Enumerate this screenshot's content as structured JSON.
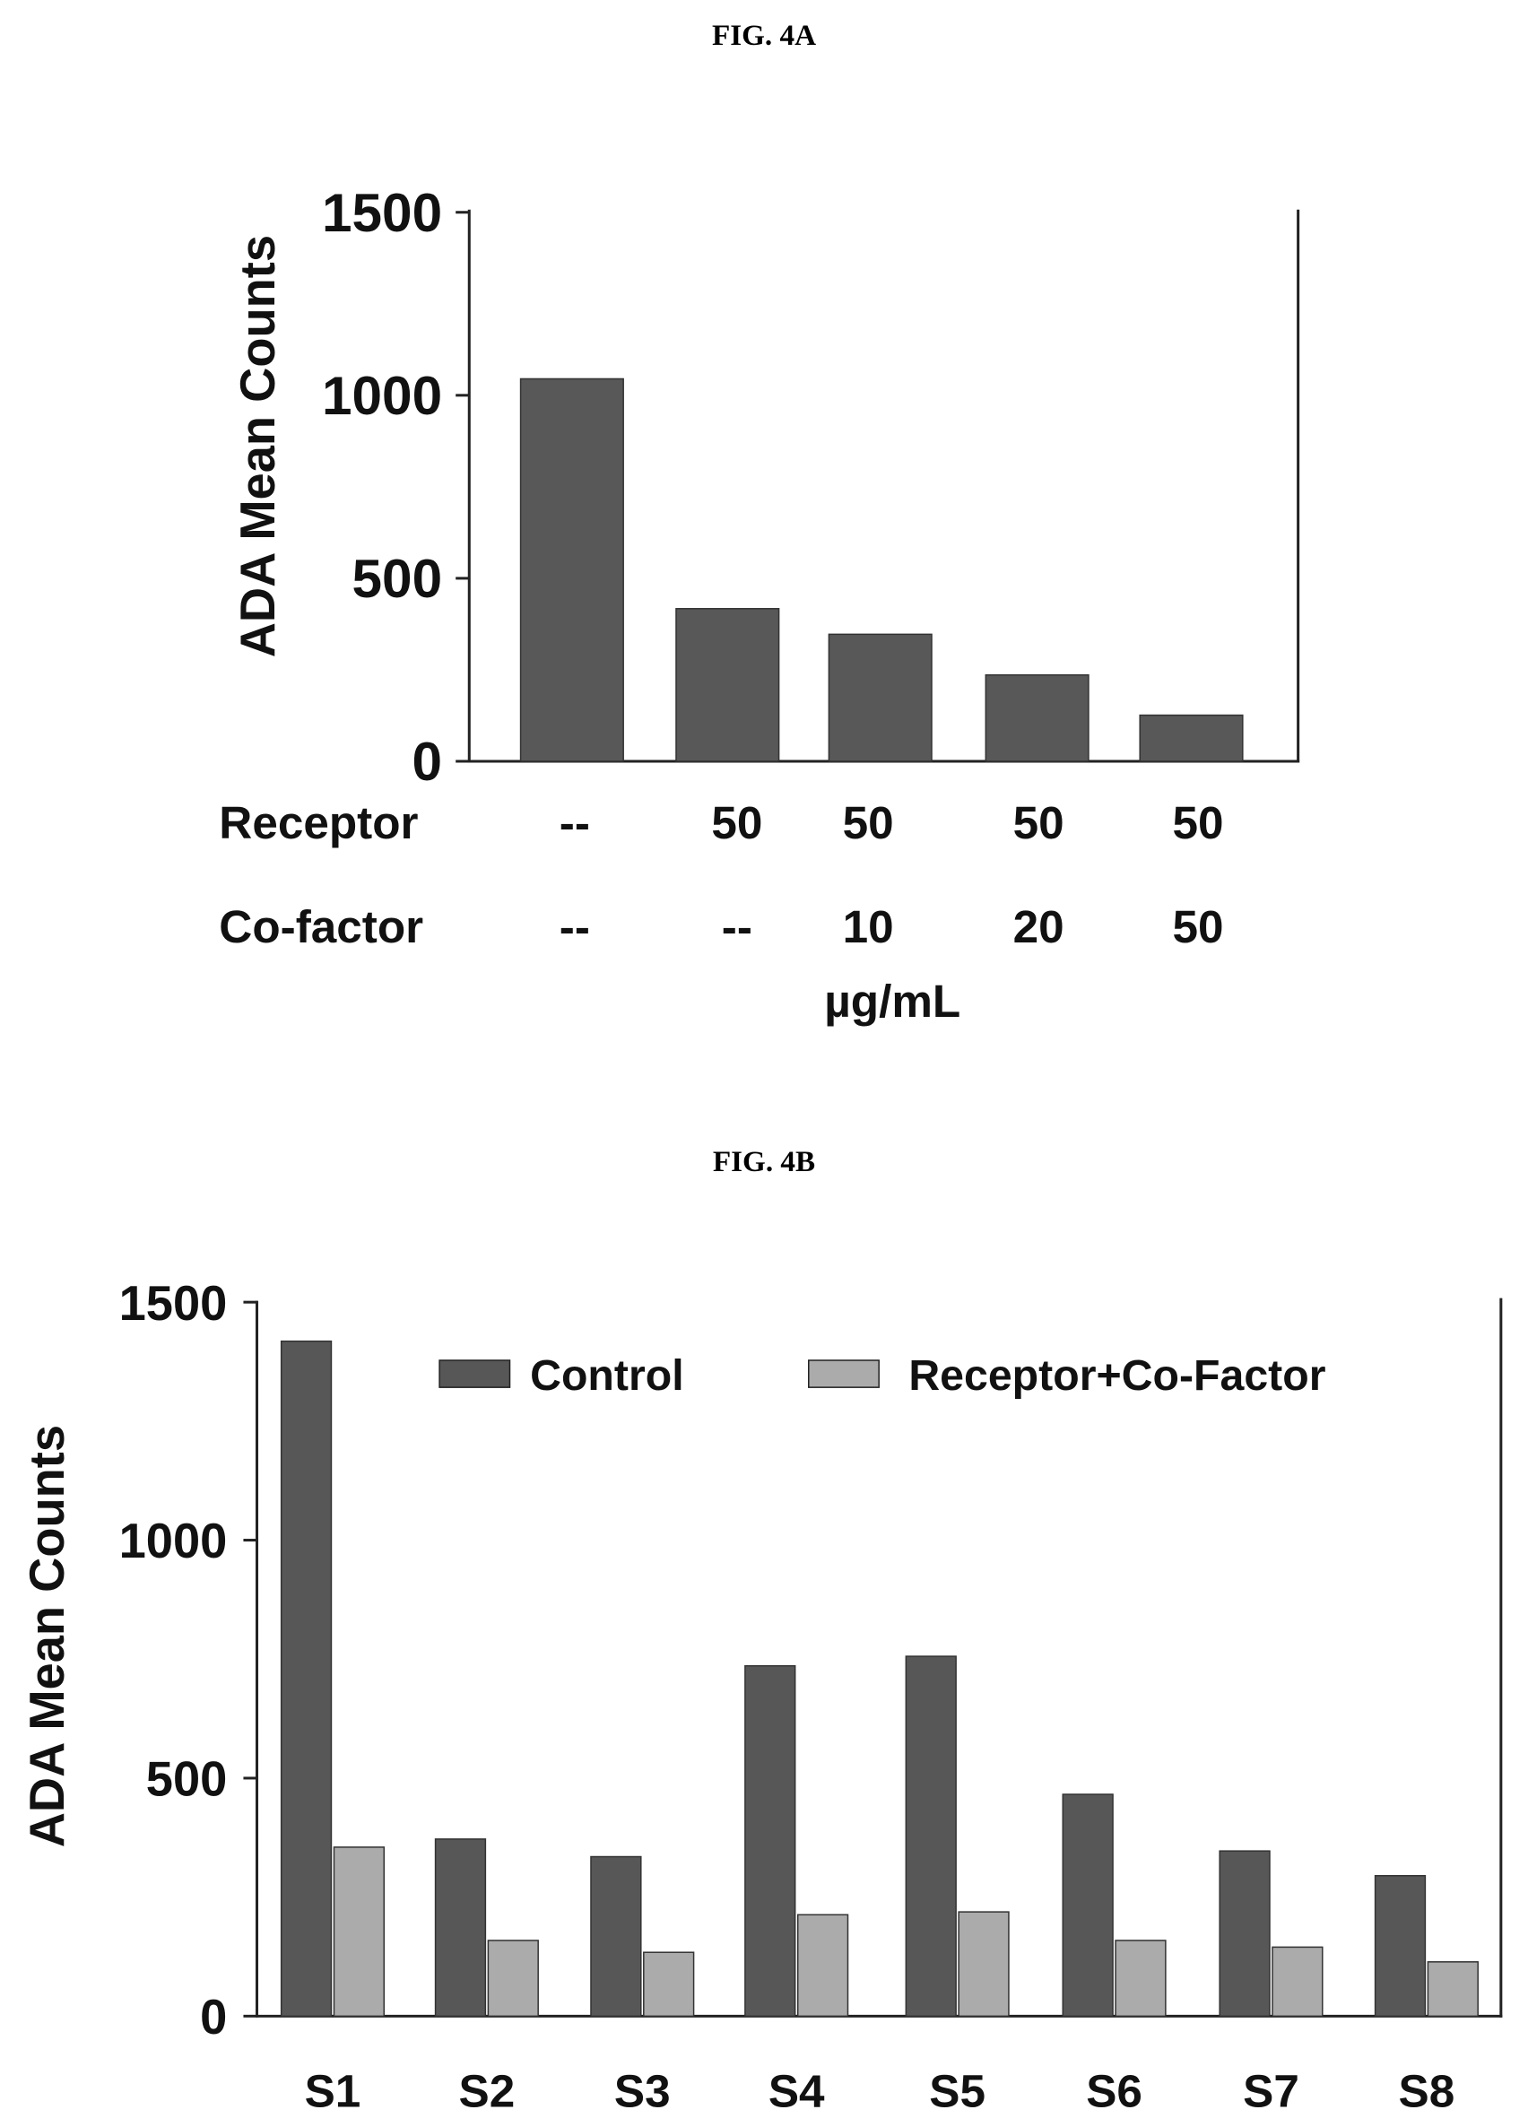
{
  "chart_data": [
    {
      "type": "bar",
      "title": "FIG. 4A",
      "ylabel": "ADA Mean Counts",
      "ylim": [
        0,
        1500
      ],
      "yticks": [
        0,
        500,
        1000,
        1500
      ],
      "grid": false,
      "row_labels": [
        "Receptor",
        "Co-factor"
      ],
      "categories_receptor": [
        "--",
        "50",
        "50",
        "50",
        "50"
      ],
      "categories_cofactor": [
        "--",
        "--",
        "10",
        "20",
        "50"
      ],
      "unit_label": "µg/mL",
      "values": [
        1045,
        417,
        347,
        236,
        126
      ],
      "color": "#585858"
    },
    {
      "type": "bar",
      "title": "FIG. 4B",
      "ylabel": "ADA Mean Counts",
      "ylim": [
        0,
        1500
      ],
      "yticks": [
        0,
        500,
        1000,
        1500
      ],
      "grid": false,
      "legend_position": "top-right",
      "categories": [
        "S1",
        "S2",
        "S3",
        "S4",
        "S5",
        "S6",
        "S7",
        "S8"
      ],
      "series": [
        {
          "name": "Control",
          "color": "#575757",
          "values": [
            1418,
            372,
            335,
            736,
            756,
            466,
            347,
            295
          ]
        },
        {
          "name": "Receptor+Co-Factor",
          "color": "#ababab",
          "values": [
            355,
            159,
            134,
            213,
            219,
            159,
            145,
            114
          ]
        }
      ]
    }
  ]
}
